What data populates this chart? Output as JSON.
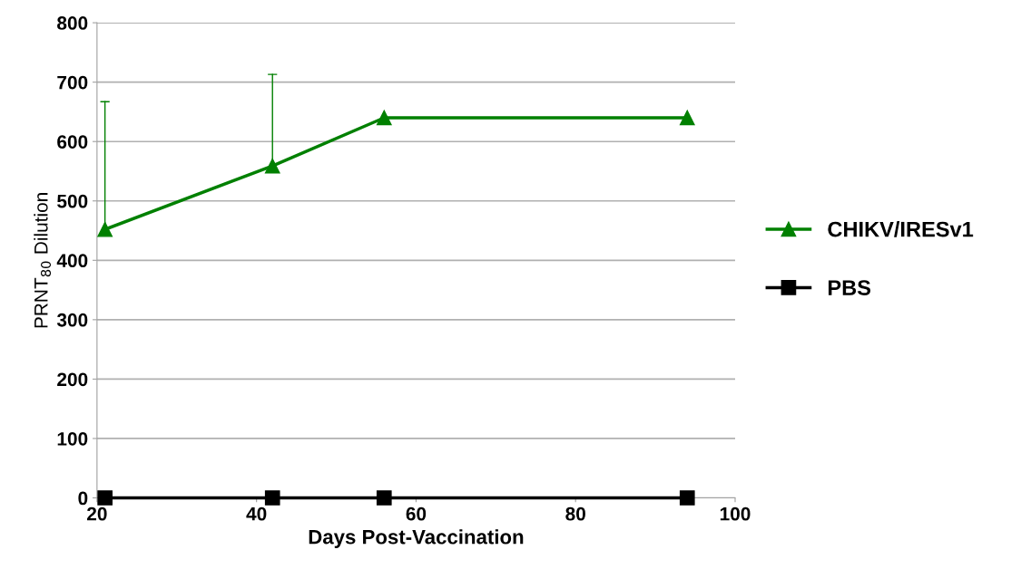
{
  "chart_data": {
    "type": "line",
    "xlabel": "Days Post-Vaccination",
    "ylabel": "PRNT$_{80}$ Dilution",
    "x": [
      21,
      42,
      56,
      94
    ],
    "series": [
      {
        "name": "CHIKV/IRESv1",
        "color": "#008000",
        "marker": "triangle",
        "values": [
          452,
          559,
          640,
          640
        ],
        "errors": [
          [
            452,
            667
          ],
          [
            559,
            713
          ],
          null,
          null
        ]
      },
      {
        "name": "PBS",
        "color": "#000000",
        "marker": "square",
        "values": [
          0,
          0,
          0,
          0
        ]
      }
    ],
    "xlim": [
      20,
      100
    ],
    "xticks": [
      20,
      40,
      60,
      80,
      100
    ],
    "ylim": [
      0,
      800
    ],
    "yticks": [
      0,
      100,
      200,
      300,
      400,
      500,
      600,
      700,
      800
    ],
    "grid": "y",
    "legend": "right",
    "line_style": "solid"
  }
}
